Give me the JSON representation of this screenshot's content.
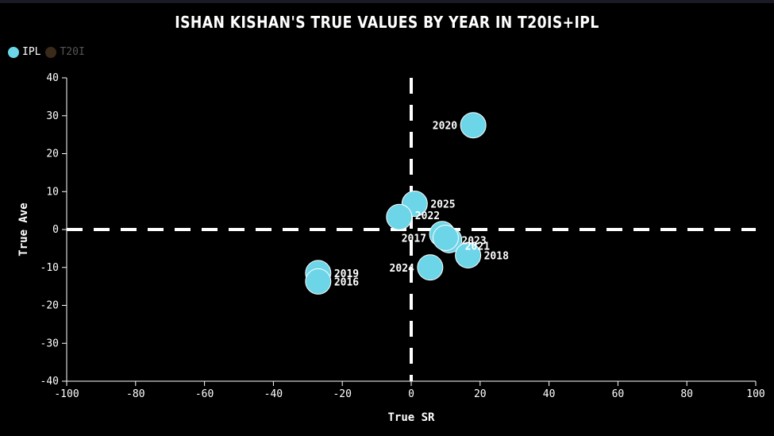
{
  "chart_data": {
    "type": "scatter",
    "title": "Ishan Kishan's True Values by Year in T20Is+IPL",
    "xlabel": "True SR",
    "ylabel": "True Ave",
    "xlim": [
      -100,
      100
    ],
    "ylim": [
      -40,
      40
    ],
    "xticks": [
      -100,
      -80,
      -60,
      -40,
      -20,
      0,
      20,
      40,
      60,
      80,
      100
    ],
    "yticks": [
      -40,
      -30,
      -20,
      -10,
      0,
      10,
      20,
      30,
      40
    ],
    "reference_lines": {
      "x": 0,
      "y": 0,
      "style": "dashed"
    },
    "legend": {
      "placement": "top-left",
      "items": [
        {
          "name": "IPL",
          "color": "#6dd5e8",
          "active": true
        },
        {
          "name": "T20I",
          "color": "#3a2a1a",
          "active": false
        }
      ]
    },
    "series": [
      {
        "name": "IPL",
        "color": "#6dd5e8",
        "points": [
          {
            "label": "2020",
            "x": 18,
            "y": 27.5
          },
          {
            "label": "2025",
            "x": 1,
            "y": 6.8
          },
          {
            "label": "2022",
            "x": -3.5,
            "y": 3.3
          },
          {
            "label": "2017",
            "x": 9,
            "y": -1.2
          },
          {
            "label": "2021",
            "x": 11,
            "y": -2.8
          },
          {
            "label": "2023",
            "x": 10,
            "y": -2.2
          },
          {
            "label": "2018",
            "x": 16.5,
            "y": -6.8
          },
          {
            "label": "2024",
            "x": 5.5,
            "y": -10
          },
          {
            "label": "2019",
            "x": -27,
            "y": -11.5
          },
          {
            "label": "2016",
            "x": -27,
            "y": -13.7
          }
        ]
      }
    ]
  }
}
